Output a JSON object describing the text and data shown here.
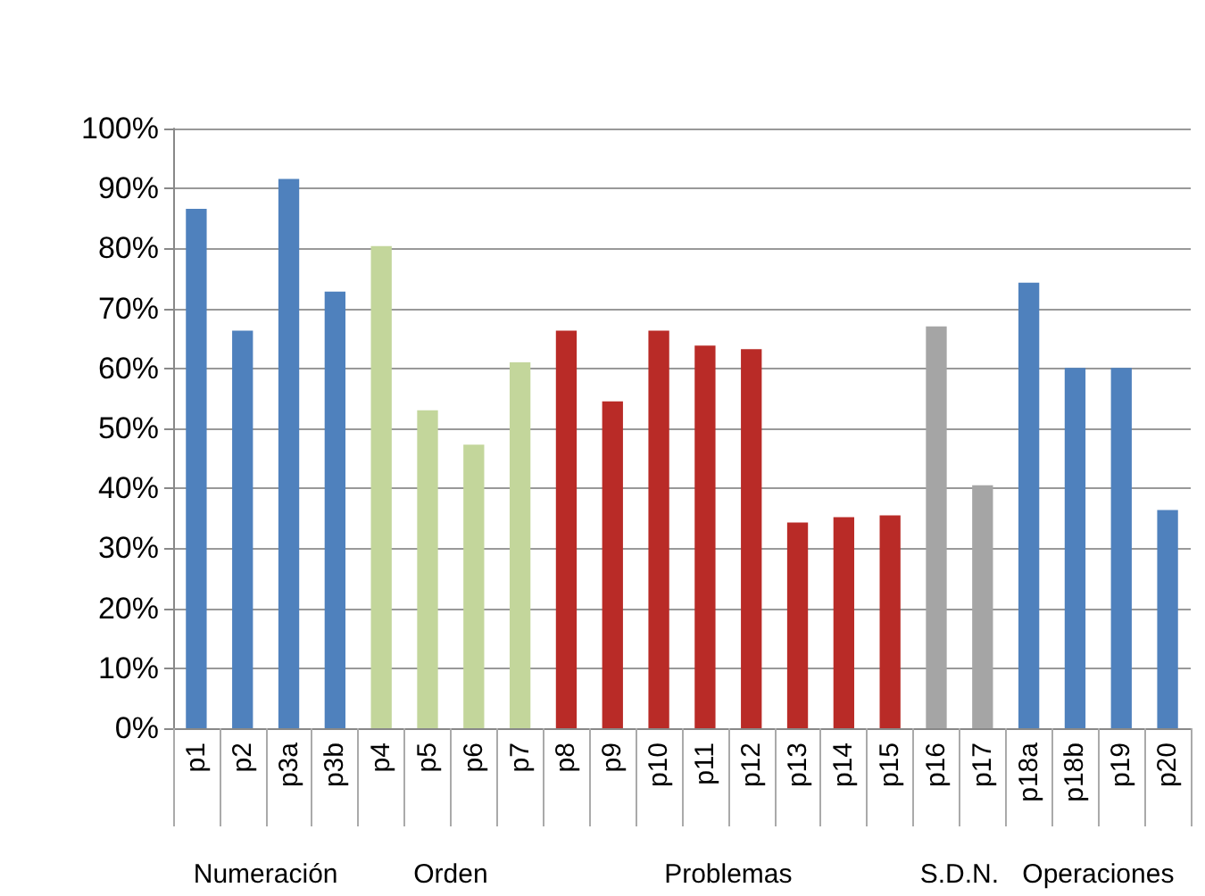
{
  "chart_data": {
    "type": "bar",
    "categories": [
      "p1",
      "p2",
      "p3a",
      "p3b",
      "p4",
      "p5",
      "p6",
      "p7",
      "p8",
      "p9",
      "p10",
      "p11",
      "p12",
      "p13",
      "p14",
      "p15",
      "p16",
      "p17",
      "p18a",
      "p18b",
      "p19",
      "p20"
    ],
    "values": [
      86.6,
      66.3,
      91.6,
      72.8,
      80.4,
      53.0,
      47.3,
      61.0,
      66.3,
      54.5,
      66.3,
      63.8,
      63.2,
      34.3,
      35.2,
      35.5,
      67.0,
      40.5,
      74.3,
      60.1,
      60.1,
      36.4
    ],
    "colors": [
      "#4f81bd",
      "#4f81bd",
      "#4f81bd",
      "#4f81bd",
      "#c3d69b",
      "#c3d69b",
      "#c3d69b",
      "#c3d69b",
      "#b92b27",
      "#b92b27",
      "#b92b27",
      "#b92b27",
      "#b92b27",
      "#b92b27",
      "#b92b27",
      "#b92b27",
      "#a5a5a5",
      "#a5a5a5",
      "#4f81bd",
      "#4f81bd",
      "#4f81bd",
      "#4f81bd"
    ],
    "ylim": [
      0,
      100
    ],
    "yticks": [
      {
        "value": 0,
        "label": "0%"
      },
      {
        "value": 10,
        "label": "10%"
      },
      {
        "value": 20,
        "label": "20%"
      },
      {
        "value": 30,
        "label": "30%"
      },
      {
        "value": 40,
        "label": "40%"
      },
      {
        "value": 50,
        "label": "50%"
      },
      {
        "value": 60,
        "label": "60%"
      },
      {
        "value": 70,
        "label": "70%"
      },
      {
        "value": 80,
        "label": "80%"
      },
      {
        "value": 90,
        "label": "90%"
      },
      {
        "value": 100,
        "label": "100%"
      }
    ],
    "annotations": [
      "Numeración",
      "Orden",
      "Problemas",
      "S.D.N.",
      "Operaciones"
    ],
    "grid": "y"
  }
}
